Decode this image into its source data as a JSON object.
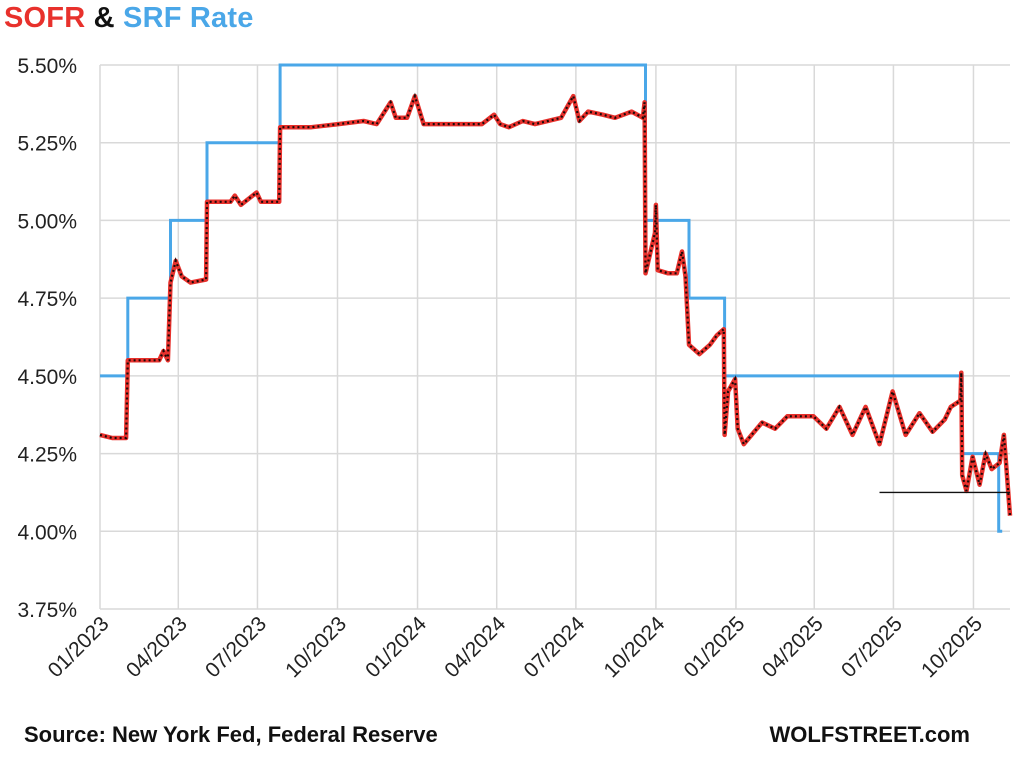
{
  "title": {
    "part1": "SOFR",
    "part2": " & ",
    "part3": "SRF Rate"
  },
  "footer": {
    "source": "Source: New York Fed, Federal Reserve",
    "brand": "WOLFSTREET.com"
  },
  "colors": {
    "sofr": "#e8312c",
    "srf": "#4aa7e8",
    "dots": "#1a0a0a",
    "grid": "#d9d9d9",
    "title_amp": "#111111"
  },
  "chart_data": {
    "type": "line",
    "title": "SOFR & SRF Rate",
    "xlabel": "",
    "ylabel": "",
    "x_range": [
      "2023-01-01",
      "2025-11-12"
    ],
    "ylim": [
      3.75,
      5.5
    ],
    "grid": true,
    "legend": "title",
    "y_ticks": [
      {
        "v": 3.75,
        "label": "3.75%"
      },
      {
        "v": 4.0,
        "label": "4.00%"
      },
      {
        "v": 4.25,
        "label": "4.25%"
      },
      {
        "v": 4.5,
        "label": "4.50%"
      },
      {
        "v": 4.75,
        "label": "4.75%"
      },
      {
        "v": 5.0,
        "label": "5.00%"
      },
      {
        "v": 5.25,
        "label": "5.25%"
      },
      {
        "v": 5.5,
        "label": "5.50%"
      }
    ],
    "x_ticks": [
      {
        "date": "2023-01-01",
        "label": "01/2023"
      },
      {
        "date": "2023-04-01",
        "label": "04/2023"
      },
      {
        "date": "2023-07-01",
        "label": "07/2023"
      },
      {
        "date": "2023-10-01",
        "label": "10/2023"
      },
      {
        "date": "2024-01-01",
        "label": "01/2024"
      },
      {
        "date": "2024-04-01",
        "label": "04/2024"
      },
      {
        "date": "2024-07-01",
        "label": "07/2024"
      },
      {
        "date": "2024-10-01",
        "label": "10/2024"
      },
      {
        "date": "2025-01-01",
        "label": "01/2025"
      },
      {
        "date": "2025-04-01",
        "label": "04/2025"
      },
      {
        "date": "2025-07-01",
        "label": "07/2025"
      },
      {
        "date": "2025-10-01",
        "label": "10/2025"
      }
    ],
    "series": [
      {
        "name": "SRF Rate",
        "color": "#4aa7e8",
        "style": "step",
        "points": [
          [
            "2023-01-01",
            4.5
          ],
          [
            "2023-02-02",
            4.5
          ],
          [
            "2023-02-02",
            4.75
          ],
          [
            "2023-03-23",
            4.75
          ],
          [
            "2023-03-23",
            5.0
          ],
          [
            "2023-05-04",
            5.0
          ],
          [
            "2023-05-04",
            5.25
          ],
          [
            "2023-07-27",
            5.25
          ],
          [
            "2023-07-27",
            5.5
          ],
          [
            "2024-09-19",
            5.5
          ],
          [
            "2024-09-19",
            5.0
          ],
          [
            "2024-11-08",
            5.0
          ],
          [
            "2024-11-08",
            4.75
          ],
          [
            "2024-12-19",
            4.75
          ],
          [
            "2024-12-19",
            4.5
          ],
          [
            "2025-09-18",
            4.5
          ],
          [
            "2025-09-18",
            4.25
          ],
          [
            "2025-10-30",
            4.25
          ],
          [
            "2025-10-30",
            4.0
          ],
          [
            "2025-11-03",
            4.0
          ]
        ]
      },
      {
        "name": "SOFR",
        "color": "#e8312c",
        "style": "line-with-dots",
        "points": [
          [
            "2023-01-01",
            4.31
          ],
          [
            "2023-01-15",
            4.3
          ],
          [
            "2023-01-31",
            4.3
          ],
          [
            "2023-02-02",
            4.55
          ],
          [
            "2023-03-10",
            4.55
          ],
          [
            "2023-03-15",
            4.58
          ],
          [
            "2023-03-20",
            4.55
          ],
          [
            "2023-03-23",
            4.8
          ],
          [
            "2023-03-29",
            4.87
          ],
          [
            "2023-04-05",
            4.82
          ],
          [
            "2023-04-15",
            4.8
          ],
          [
            "2023-05-03",
            4.81
          ],
          [
            "2023-05-04",
            5.06
          ],
          [
            "2023-05-31",
            5.06
          ],
          [
            "2023-06-05",
            5.08
          ],
          [
            "2023-06-12",
            5.05
          ],
          [
            "2023-06-30",
            5.09
          ],
          [
            "2023-07-05",
            5.06
          ],
          [
            "2023-07-26",
            5.06
          ],
          [
            "2023-07-27",
            5.3
          ],
          [
            "2023-09-01",
            5.3
          ],
          [
            "2023-10-02",
            5.31
          ],
          [
            "2023-10-31",
            5.32
          ],
          [
            "2023-11-15",
            5.31
          ],
          [
            "2023-12-01",
            5.38
          ],
          [
            "2023-12-07",
            5.33
          ],
          [
            "2023-12-20",
            5.33
          ],
          [
            "2023-12-29",
            5.4
          ],
          [
            "2024-01-08",
            5.31
          ],
          [
            "2024-02-15",
            5.31
          ],
          [
            "2024-03-15",
            5.31
          ],
          [
            "2024-03-29",
            5.34
          ],
          [
            "2024-04-05",
            5.31
          ],
          [
            "2024-04-15",
            5.3
          ],
          [
            "2024-05-01",
            5.32
          ],
          [
            "2024-05-15",
            5.31
          ],
          [
            "2024-06-14",
            5.33
          ],
          [
            "2024-06-28",
            5.4
          ],
          [
            "2024-07-05",
            5.32
          ],
          [
            "2024-07-15",
            5.35
          ],
          [
            "2024-08-01",
            5.34
          ],
          [
            "2024-08-15",
            5.33
          ],
          [
            "2024-09-03",
            5.35
          ],
          [
            "2024-09-16",
            5.33
          ],
          [
            "2024-09-18",
            5.38
          ],
          [
            "2024-09-19",
            4.83
          ],
          [
            "2024-09-30",
            4.96
          ],
          [
            "2024-10-01",
            5.05
          ],
          [
            "2024-10-03",
            4.84
          ],
          [
            "2024-10-15",
            4.83
          ],
          [
            "2024-10-25",
            4.83
          ],
          [
            "2024-10-31",
            4.9
          ],
          [
            "2024-11-04",
            4.82
          ],
          [
            "2024-11-08",
            4.6
          ],
          [
            "2024-11-20",
            4.57
          ],
          [
            "2024-12-02",
            4.6
          ],
          [
            "2024-12-10",
            4.63
          ],
          [
            "2024-12-18",
            4.65
          ],
          [
            "2024-12-19",
            4.31
          ],
          [
            "2024-12-23",
            4.45
          ],
          [
            "2024-12-31",
            4.49
          ],
          [
            "2025-01-03",
            4.33
          ],
          [
            "2025-01-10",
            4.28
          ],
          [
            "2025-01-31",
            4.35
          ],
          [
            "2025-02-15",
            4.33
          ],
          [
            "2025-03-01",
            4.37
          ],
          [
            "2025-03-31",
            4.37
          ],
          [
            "2025-04-15",
            4.33
          ],
          [
            "2025-04-30",
            4.4
          ],
          [
            "2025-05-15",
            4.31
          ],
          [
            "2025-05-30",
            4.4
          ],
          [
            "2025-06-15",
            4.28
          ],
          [
            "2025-06-30",
            4.45
          ],
          [
            "2025-07-15",
            4.31
          ],
          [
            "2025-07-31",
            4.38
          ],
          [
            "2025-08-15",
            4.32
          ],
          [
            "2025-08-29",
            4.36
          ],
          [
            "2025-09-05",
            4.4
          ],
          [
            "2025-09-16",
            4.42
          ],
          [
            "2025-09-17",
            4.51
          ],
          [
            "2025-09-18",
            4.18
          ],
          [
            "2025-09-23",
            4.13
          ],
          [
            "2025-09-30",
            4.24
          ],
          [
            "2025-10-08",
            4.15
          ],
          [
            "2025-10-15",
            4.25
          ],
          [
            "2025-10-22",
            4.2
          ],
          [
            "2025-10-31",
            4.22
          ],
          [
            "2025-11-05",
            4.31
          ],
          [
            "2025-11-08",
            4.2
          ],
          [
            "2025-11-12",
            4.05
          ]
        ]
      }
    ],
    "annotations": [
      {
        "type": "hline",
        "y": 4.125,
        "x_start": "2025-06-15",
        "x_end": "2025-11-12",
        "color": "#111111"
      }
    ]
  }
}
